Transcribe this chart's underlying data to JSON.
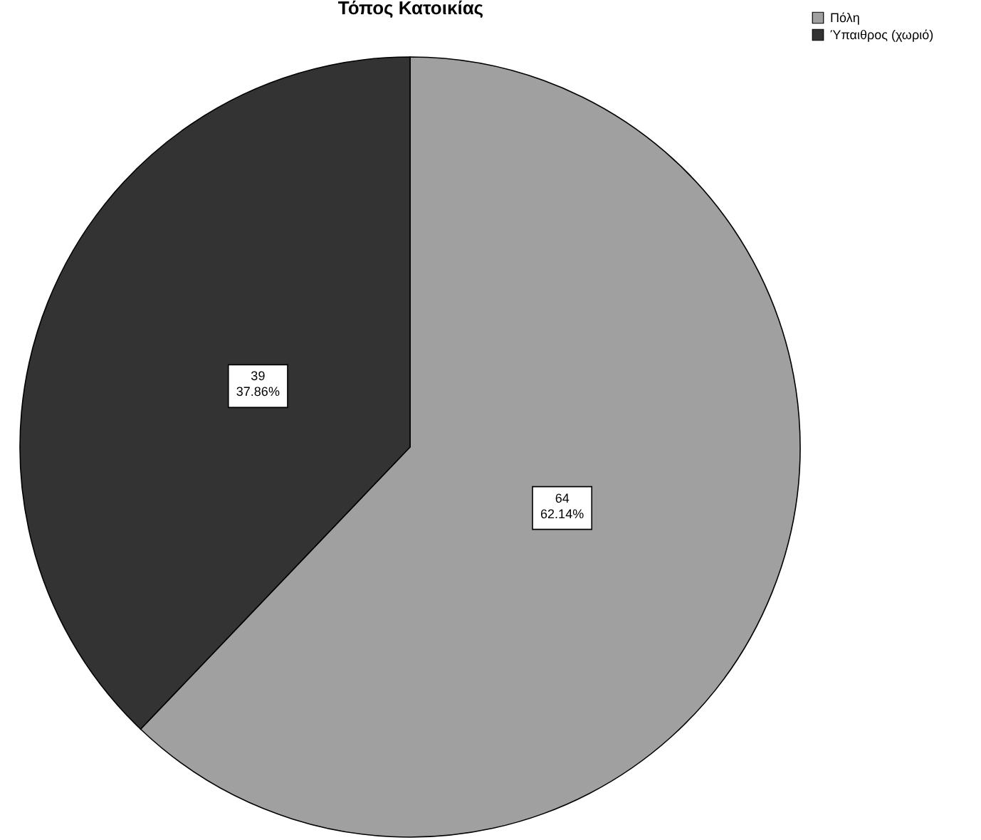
{
  "chart_data": {
    "type": "pie",
    "title": "Τόπος Κατοικίας",
    "categories": [
      "Πόλη",
      "Ύπαιθρος (χωριό)"
    ],
    "values": [
      64,
      39
    ],
    "colors": [
      "#a0a0a0",
      "#333333"
    ],
    "value_labels": [
      "64\n62.14%",
      "39\n37.86%"
    ],
    "legend": "top right"
  }
}
